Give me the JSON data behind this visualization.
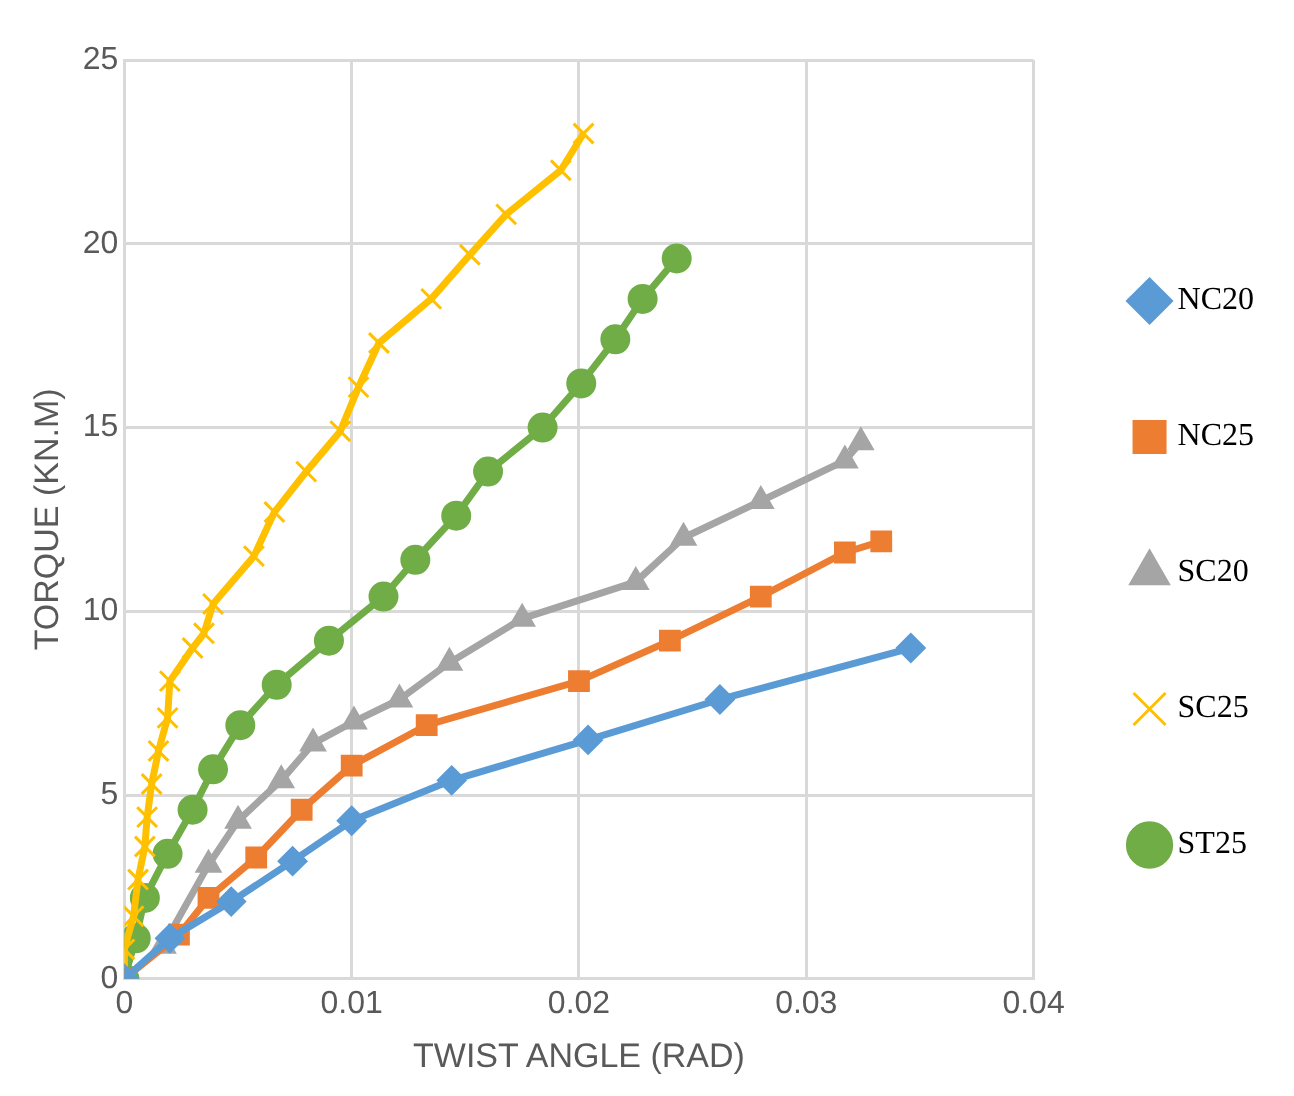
{
  "chart_data": {
    "type": "line",
    "xlabel": "TWIST ANGLE (RAD)",
    "ylabel": "TORQUE (KN.M)",
    "xlim": [
      0,
      0.04
    ],
    "xticks": [
      0,
      0.01,
      0.02,
      0.03,
      0.04
    ],
    "ylim": [
      0,
      25
    ],
    "yticks": [
      0,
      5,
      10,
      15,
      20,
      25
    ],
    "grid": true,
    "legend": "right",
    "series": [
      {
        "name": "NC20",
        "color": "#5b9bd5",
        "marker": "diamond",
        "x": [
          0,
          0.002,
          0.0047,
          0.0074,
          0.01,
          0.0144,
          0.0204,
          0.0262,
          0.0346
        ],
        "values": [
          0,
          1.1,
          2.1,
          3.2,
          4.3,
          5.4,
          6.5,
          7.6,
          9.0
        ]
      },
      {
        "name": "NC25",
        "color": "#ed7d31",
        "marker": "square",
        "x": [
          0,
          0.0024,
          0.0037,
          0.0058,
          0.0078,
          0.01,
          0.0133,
          0.02,
          0.024,
          0.028,
          0.0317,
          0.0333
        ],
        "values": [
          0,
          1.2,
          2.2,
          3.3,
          4.6,
          5.8,
          6.9,
          8.1,
          9.2,
          10.4,
          11.6,
          11.9
        ]
      },
      {
        "name": "SC20",
        "color": "#a5a5a5",
        "marker": "triangle",
        "x": [
          0,
          0.0017,
          0.0037,
          0.005,
          0.0069,
          0.0083,
          0.0101,
          0.0121,
          0.0143,
          0.0175,
          0.0225,
          0.0246,
          0.028,
          0.0317,
          0.0324
        ],
        "values": [
          0,
          0.9,
          3.1,
          4.3,
          5.4,
          6.4,
          7.0,
          7.6,
          8.6,
          9.8,
          10.8,
          12.0,
          13.0,
          14.1,
          14.6
        ]
      },
      {
        "name": "SC25",
        "color": "#ffc000",
        "marker": "cross",
        "x": [
          0,
          0,
          0.0004,
          0.0006,
          0.0009,
          0.001,
          0.0012,
          0.0015,
          0.0019,
          0.002,
          0.003,
          0.0035,
          0.0039,
          0.0057,
          0.0066,
          0.008,
          0.0095,
          0.0103,
          0.0112,
          0.0135,
          0.0152,
          0.0168,
          0.0192,
          0.0202
        ],
        "values": [
          0,
          0.8,
          1.7,
          2.7,
          3.6,
          4.4,
          5.3,
          6.2,
          7.1,
          8.1,
          9.0,
          9.4,
          10.2,
          11.5,
          12.7,
          13.8,
          14.9,
          16.1,
          17.3,
          18.5,
          19.7,
          20.8,
          22.0,
          23.0
        ]
      },
      {
        "name": "ST25",
        "color": "#70ad47",
        "marker": "circle",
        "x": [
          0,
          0.0005,
          0.0009,
          0.0019,
          0.003,
          0.0039,
          0.0051,
          0.0067,
          0.009,
          0.0114,
          0.0128,
          0.0146,
          0.016,
          0.0184,
          0.0201,
          0.0216,
          0.0228,
          0.0243
        ],
        "values": [
          0,
          1.1,
          2.2,
          3.4,
          4.6,
          5.7,
          6.9,
          8.0,
          9.2,
          10.4,
          11.4,
          12.6,
          13.8,
          15.0,
          16.2,
          17.4,
          18.5,
          19.6
        ]
      }
    ]
  }
}
